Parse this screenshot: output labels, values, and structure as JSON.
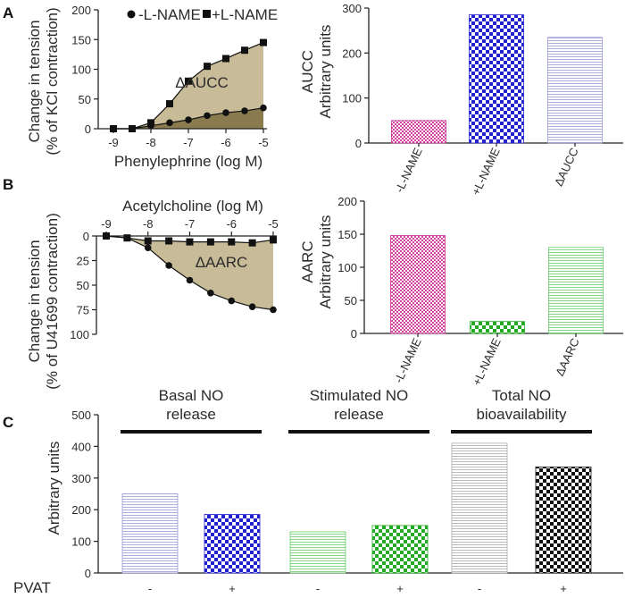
{
  "panels": {
    "a": "A",
    "b": "B",
    "c": "C"
  },
  "chart_data": [
    {
      "id": "A-line",
      "type": "line",
      "xlabel": "Phenylephrine (log M)",
      "ylabel_lines": [
        "Change in tension",
        "(% of KCl contraction)"
      ],
      "x": [
        -9,
        -8.5,
        -8,
        -7.5,
        -7,
        -6.5,
        -6,
        -5.5,
        -5
      ],
      "xticks": [
        "-9",
        "-8",
        "-7",
        "-6",
        "-5"
      ],
      "xlim": [
        -9,
        -5
      ],
      "yticks": [
        "0",
        "50",
        "100",
        "150",
        "200"
      ],
      "ylim": [
        0,
        200
      ],
      "series": [
        {
          "name": "-L-NAME",
          "marker": "circle",
          "values": [
            0,
            0,
            5,
            10,
            15,
            22,
            27,
            30,
            35
          ]
        },
        {
          "name": "+L-NAME",
          "marker": "square",
          "values": [
            0,
            0,
            10,
            42,
            80,
            105,
            118,
            132,
            145
          ]
        }
      ],
      "fills": {
        "lower": "#8a7b4f",
        "between": "#c8bc98"
      },
      "annotation": "ΔAUCC"
    },
    {
      "id": "A-bar",
      "type": "bar",
      "ylabel_lines": [
        "AUCC",
        "Arbitrary units"
      ],
      "categories": [
        "-L-NAME",
        "+L-NAME",
        "ΔAUCC"
      ],
      "values": [
        50,
        285,
        235
      ],
      "colors": [
        "#cc3399",
        "#2222cc",
        "#9a9ad6"
      ],
      "patterns": [
        "dots",
        "checker",
        "hlines"
      ],
      "yticks": [
        "0",
        "100",
        "200",
        "300"
      ],
      "ylim": [
        0,
        300
      ]
    },
    {
      "id": "B-line",
      "type": "line",
      "xlabel": "Acetylcholine (log M)",
      "ylabel_lines": [
        "Change in tension",
        "(% of U41699 contraction)"
      ],
      "x": [
        -9,
        -8.5,
        -8,
        -7.5,
        -7,
        -6.5,
        -6,
        -5.5,
        -5
      ],
      "xticks": [
        "-9",
        "-8",
        "-7",
        "-6",
        "-5"
      ],
      "xlim": [
        -9,
        -5
      ],
      "yticks": [
        "0",
        "25",
        "50",
        "75",
        "100"
      ],
      "ylim": [
        0,
        100
      ],
      "inverted": true,
      "series": [
        {
          "name": "-L-NAME",
          "marker": "circle",
          "values": [
            0,
            2,
            12,
            30,
            45,
            58,
            66,
            72,
            75
          ]
        },
        {
          "name": "+L-NAME",
          "marker": "square",
          "values": [
            0,
            2,
            5,
            5,
            6,
            6,
            6,
            7,
            4
          ]
        }
      ],
      "fills": {
        "between": "#c8bc98"
      },
      "annotation": "ΔAARC"
    },
    {
      "id": "B-bar",
      "type": "bar",
      "ylabel_lines": [
        "AARC",
        "Arbitrary units"
      ],
      "categories": [
        "-L-NAME",
        "+L-NAME",
        "ΔAARC"
      ],
      "values": [
        148,
        18,
        130
      ],
      "colors": [
        "#cc3399",
        "#22aa22",
        "#66cc66"
      ],
      "patterns": [
        "dots",
        "checker",
        "hlines"
      ],
      "yticks": [
        "0",
        "50",
        "100",
        "150",
        "200"
      ],
      "ylim": [
        0,
        200
      ]
    },
    {
      "id": "C-bar",
      "type": "bar",
      "ylabel": "Arbitrary units",
      "groups": [
        {
          "label_lines": [
            "Basal NO",
            "release"
          ]
        },
        {
          "label_lines": [
            "Stimulated NO",
            "release"
          ]
        },
        {
          "label_lines": [
            "Total NO",
            "bioavailability"
          ]
        }
      ],
      "row_label": "PVAT",
      "categories": [
        "-",
        "+",
        "-",
        "+",
        "-",
        "+"
      ],
      "values": [
        250,
        185,
        130,
        150,
        410,
        335
      ],
      "colors": [
        "#9a9ad6",
        "#2222cc",
        "#66cc66",
        "#22aa22",
        "#aaaaaa",
        "#111111"
      ],
      "patterns": [
        "hlines",
        "checker",
        "hlines",
        "checker",
        "hlines",
        "checker"
      ],
      "yticks": [
        "0",
        "100",
        "200",
        "300",
        "400",
        "500"
      ],
      "ylim": [
        0,
        500
      ]
    }
  ]
}
